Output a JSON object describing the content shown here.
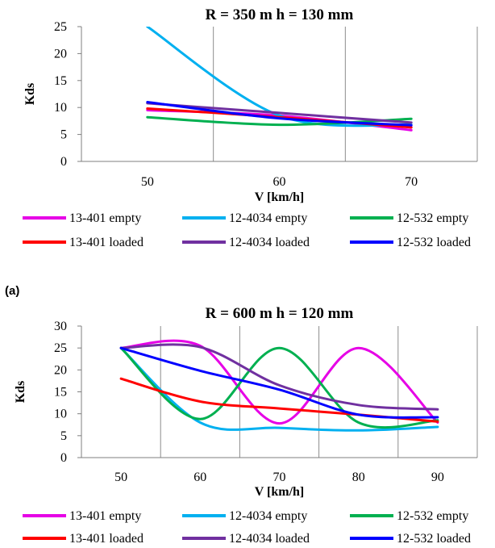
{
  "panel_label": "(a)",
  "colors": {
    "13-401 empty": "#e600e6",
    "12-4034 empty": "#00b0f0",
    "12-532 empty": "#00b050",
    "13-401 loaded": "#ff0000",
    "12-4034 loaded": "#7030a0",
    "12-532 loaded": "#0000ff"
  },
  "chart_data": [
    {
      "type": "line",
      "title": "R = 350 m  h = 130 mm",
      "xlabel": "V [km/h]",
      "ylabel": "Kds",
      "categories": [
        "50",
        "60",
        "70"
      ],
      "ylim": [
        0,
        25
      ],
      "yticks": [
        0,
        5,
        10,
        15,
        20,
        25
      ],
      "grid": "vertical",
      "legend": "bottom",
      "series": [
        {
          "name": "13-401 empty",
          "values": [
            9.5,
            8.5,
            5.8
          ]
        },
        {
          "name": "12-4034 empty",
          "values": [
            25.0,
            8.5,
            6.8
          ]
        },
        {
          "name": "12-532 empty",
          "values": [
            8.2,
            6.8,
            7.9
          ]
        },
        {
          "name": "13-401 loaded",
          "values": [
            9.8,
            8.2,
            6.3
          ]
        },
        {
          "name": "12-4034 loaded",
          "values": [
            10.8,
            9.0,
            7.2
          ]
        },
        {
          "name": "12-532 loaded",
          "values": [
            11.0,
            8.0,
            6.7
          ]
        }
      ]
    },
    {
      "type": "line",
      "title": "R = 600 m  h = 120 mm",
      "xlabel": "V [km/h]",
      "ylabel": "Kds",
      "categories": [
        "50",
        "60",
        "70",
        "80",
        "90"
      ],
      "ylim": [
        0,
        30
      ],
      "yticks": [
        0,
        5,
        10,
        15,
        20,
        25,
        30
      ],
      "grid": "vertical",
      "legend": "bottom",
      "series": [
        {
          "name": "13-401 empty",
          "values": [
            25.0,
            25.5,
            7.8,
            25.0,
            8.0
          ]
        },
        {
          "name": "12-4034 empty",
          "values": [
            25.0,
            8.0,
            6.8,
            6.2,
            7.0
          ]
        },
        {
          "name": "12-532 empty",
          "values": [
            25.0,
            8.8,
            25.0,
            8.0,
            8.5
          ]
        },
        {
          "name": "13-401 loaded",
          "values": [
            18.0,
            12.8,
            11.2,
            9.8,
            8.2
          ]
        },
        {
          "name": "12-4034 loaded",
          "values": [
            25.0,
            25.2,
            16.5,
            12.0,
            11.0
          ]
        },
        {
          "name": "12-532 loaded",
          "values": [
            25.0,
            19.8,
            15.5,
            9.8,
            9.2
          ]
        }
      ]
    }
  ]
}
